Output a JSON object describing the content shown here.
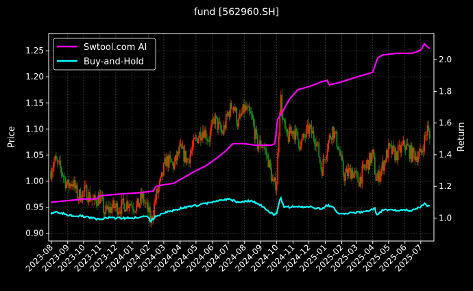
{
  "chart_data": {
    "type": "candlestick+line",
    "title": "fund [562960.SH]",
    "ylabel": "Price",
    "y2label": "Return",
    "ylim": [
      0.885,
      1.283
    ],
    "y2lim": [
      0.855,
      2.165
    ],
    "yticks": [
      "0.90",
      "0.95",
      "1.00",
      "1.05",
      "1.10",
      "1.15",
      "1.20",
      "1.25"
    ],
    "y2ticks": [
      "1.0",
      "1.2",
      "1.4",
      "1.6",
      "1.8",
      "2.0"
    ],
    "xticks": [
      "2023-08",
      "2023-09",
      "2023-10",
      "2023-11",
      "2023-12",
      "2024-01",
      "2024-02",
      "2024-03",
      "2024-04",
      "2024-05",
      "2024-06",
      "2024-07",
      "2024-08",
      "2024-09",
      "2024-10",
      "2024-11",
      "2024-12",
      "2025-01",
      "2025-02",
      "2025-03",
      "2025-04",
      "2025-05",
      "2025-06",
      "2025-07"
    ],
    "grid": true,
    "legend_position": "top-left",
    "colors": {
      "up": "#ff2a00",
      "down": "#1a8f1a",
      "strategy": "#ff00ff",
      "buyhold": "#00ffff"
    },
    "price": {
      "dates": [
        "2023-07-31",
        "2023-08-07",
        "2023-08-20",
        "2023-09-01",
        "2023-09-10",
        "2023-09-20",
        "2023-10-05",
        "2023-10-20",
        "2023-11-01",
        "2023-11-10",
        "2023-11-25",
        "2023-12-10",
        "2023-12-25",
        "2024-01-10",
        "2024-01-20",
        "2024-02-01",
        "2024-02-05",
        "2024-02-15",
        "2024-02-25",
        "2024-03-05",
        "2024-03-20",
        "2024-04-01",
        "2024-04-15",
        "2024-05-01",
        "2024-05-15",
        "2024-05-25",
        "2024-06-05",
        "2024-06-20",
        "2024-07-01",
        "2024-07-10",
        "2024-07-20",
        "2024-08-01",
        "2024-08-15",
        "2024-08-25",
        "2024-09-05",
        "2024-09-15",
        "2024-09-25",
        "2024-10-01",
        "2024-10-08",
        "2024-10-12",
        "2024-10-20",
        "2024-11-01",
        "2024-11-15",
        "2024-12-01",
        "2024-12-15",
        "2024-12-25",
        "2025-01-05",
        "2025-01-15",
        "2025-01-25",
        "2025-02-05",
        "2025-02-20",
        "2025-03-05",
        "2025-03-20",
        "2025-04-01",
        "2025-04-08",
        "2025-04-20",
        "2025-05-01",
        "2025-05-15",
        "2025-06-01",
        "2025-06-15",
        "2025-07-01",
        "2025-07-08",
        "2025-07-14",
        "2025-07-18"
      ],
      "values": [
        1.02,
        1.04,
        1.02,
        0.99,
        1.0,
        0.97,
        0.98,
        0.96,
        0.97,
        0.94,
        0.95,
        0.95,
        0.96,
        0.95,
        0.97,
        0.94,
        0.92,
        0.97,
        1.0,
        1.04,
        1.03,
        1.06,
        1.04,
        1.08,
        1.1,
        1.08,
        1.12,
        1.09,
        1.13,
        1.15,
        1.11,
        1.14,
        1.12,
        1.07,
        1.07,
        1.04,
        0.99,
        1.0,
        1.17,
        1.12,
        1.08,
        1.1,
        1.07,
        1.1,
        1.08,
        1.02,
        1.07,
        1.1,
        1.07,
        1.01,
        1.02,
        1.0,
        1.03,
        1.05,
        1.0,
        1.03,
        1.06,
        1.05,
        1.07,
        1.05,
        1.05,
        1.08,
        1.1,
        1.08
      ]
    },
    "series": [
      {
        "name": "Swtool.com AI",
        "dates": [
          "2023-07-31",
          "2023-09-01",
          "2023-10-01",
          "2023-10-25",
          "2023-11-01",
          "2023-12-01",
          "2024-01-15",
          "2024-02-10",
          "2024-02-15",
          "2024-03-01",
          "2024-03-20",
          "2024-04-10",
          "2024-05-01",
          "2024-05-20",
          "2024-06-10",
          "2024-06-25",
          "2024-07-10",
          "2024-08-01",
          "2024-08-20",
          "2024-09-20",
          "2024-09-28",
          "2024-10-02",
          "2024-10-10",
          "2024-10-25",
          "2024-11-10",
          "2024-12-01",
          "2024-12-25",
          "2025-01-05",
          "2025-01-08",
          "2025-02-01",
          "2025-03-01",
          "2025-04-01",
          "2025-04-10",
          "2025-04-20",
          "2025-05-15",
          "2025-06-15",
          "2025-07-01",
          "2025-07-08",
          "2025-07-14",
          "2025-07-18"
        ],
        "values": [
          1.1,
          1.11,
          1.12,
          1.12,
          1.14,
          1.15,
          1.16,
          1.17,
          1.2,
          1.21,
          1.22,
          1.26,
          1.3,
          1.33,
          1.38,
          1.42,
          1.47,
          1.47,
          1.46,
          1.46,
          1.47,
          1.62,
          1.66,
          1.75,
          1.81,
          1.83,
          1.86,
          1.87,
          1.84,
          1.86,
          1.89,
          1.92,
          2.01,
          2.03,
          2.04,
          2.04,
          2.06,
          2.1,
          2.08,
          2.07
        ]
      },
      {
        "name": "Buy-and-Hold",
        "dates": [
          "2023-07-31",
          "2023-08-10",
          "2023-09-01",
          "2023-10-01",
          "2023-11-01",
          "2023-11-10",
          "2023-12-01",
          "2024-01-01",
          "2024-02-01",
          "2024-02-05",
          "2024-02-15",
          "2024-03-01",
          "2024-04-01",
          "2024-05-01",
          "2024-06-01",
          "2024-07-01",
          "2024-07-20",
          "2024-08-15",
          "2024-09-01",
          "2024-09-25",
          "2024-10-01",
          "2024-10-08",
          "2024-10-15",
          "2024-11-01",
          "2024-12-01",
          "2024-12-25",
          "2025-01-05",
          "2025-01-15",
          "2025-01-25",
          "2025-02-15",
          "2025-03-15",
          "2025-04-05",
          "2025-04-08",
          "2025-04-20",
          "2025-05-15",
          "2025-06-15",
          "2025-07-01",
          "2025-07-08",
          "2025-07-14",
          "2025-07-18"
        ],
        "values": [
          1.03,
          1.04,
          1.02,
          1.01,
          0.99,
          1.0,
          1.0,
          1.0,
          1.01,
          0.98,
          1.01,
          1.03,
          1.06,
          1.08,
          1.1,
          1.12,
          1.1,
          1.11,
          1.08,
          1.02,
          1.03,
          1.13,
          1.07,
          1.07,
          1.07,
          1.06,
          1.08,
          1.07,
          1.03,
          1.03,
          1.04,
          1.06,
          1.02,
          1.05,
          1.05,
          1.05,
          1.07,
          1.09,
          1.08,
          1.08
        ]
      }
    ]
  }
}
